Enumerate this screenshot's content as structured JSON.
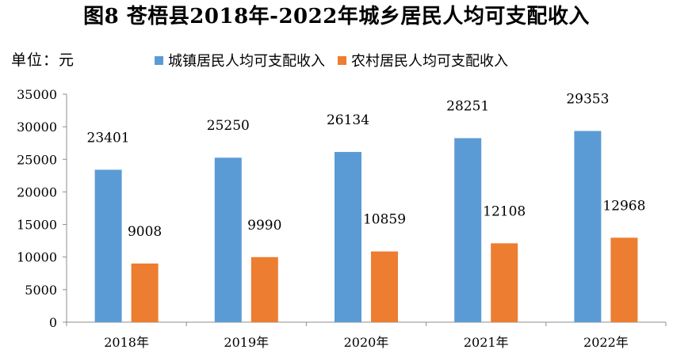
{
  "chart_data": {
    "type": "bar",
    "title": "图8  苍梧县2018年-2022年城乡居民人均可支配收入",
    "unit_label": "单位：元",
    "xlabel": "",
    "ylabel": "",
    "categories": [
      "2018年",
      "2019年",
      "2020年",
      "2021年",
      "2022年"
    ],
    "series": [
      {
        "name": "城镇居民人均可支配收入",
        "color": "#5B9BD5",
        "values": [
          23401,
          25250,
          26134,
          28251,
          29353
        ]
      },
      {
        "name": "农村居民人均可支配收入",
        "color": "#ED7D31",
        "values": [
          9008,
          9990,
          10859,
          12108,
          12968
        ]
      }
    ],
    "ylim": [
      0,
      35000
    ],
    "yticks": [
      0,
      5000,
      10000,
      15000,
      20000,
      25000,
      30000,
      35000
    ],
    "grid": false,
    "legend_position": "top"
  }
}
